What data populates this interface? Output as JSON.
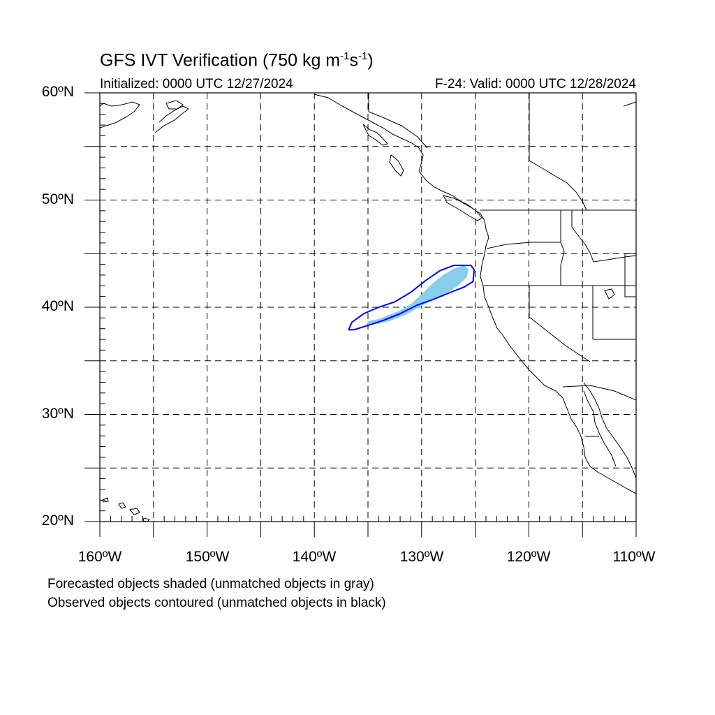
{
  "figure": {
    "title_prefix": "GFS IVT Verification (750 kg m",
    "title_exp1": "-1",
    "title_mid": "s",
    "title_exp2": "-1",
    "title_suffix": ")",
    "initialized": "Initialized: 0000 UTC 12/27/2024",
    "valid": "F-24: Valid: 0000 UTC 12/28/2024",
    "legend_note_1": "Forecasted objects shaded (unmatched objects in gray)",
    "legend_note_2": "Observed objects contoured (unmatched objects in black)"
  },
  "axes": {
    "lon_range": [
      -160,
      -110
    ],
    "lat_range": [
      20,
      60
    ],
    "lat_labels": [
      "60ºN",
      "50ºN",
      "40ºN",
      "30ºN",
      "20ºN"
    ],
    "lon_labels": [
      "160ºW",
      "150ºW",
      "140ºW",
      "130ºW",
      "120ºW",
      "110ºW"
    ],
    "grid_spacing_deg": 5,
    "grid": "dashed"
  },
  "colors": {
    "forecast_matched_fill": "#87ceeb",
    "observed_matched_contour": "#0000ff",
    "coastline": "#000000",
    "grid": "#000000"
  },
  "objects": {
    "forecast_object": {
      "matched": true,
      "polygon_lonlat": [
        [
          -135,
          38.7
        ],
        [
          -134,
          38.9
        ],
        [
          -133,
          39.3
        ],
        [
          -132,
          39.7
        ],
        [
          -131,
          40.3
        ],
        [
          -130,
          41.2
        ],
        [
          -129,
          42.2
        ],
        [
          -128,
          43.0
        ],
        [
          -127,
          43.6
        ],
        [
          -126,
          43.9
        ],
        [
          -125.6,
          43.5
        ],
        [
          -125.8,
          42.8
        ],
        [
          -126.6,
          42.0
        ],
        [
          -127.5,
          41.4
        ],
        [
          -128.8,
          40.8
        ],
        [
          -130.2,
          40.0
        ],
        [
          -131.5,
          39.3
        ],
        [
          -133,
          38.7
        ],
        [
          -134.3,
          38.4
        ],
        [
          -135,
          38.4
        ]
      ]
    },
    "observed_object": {
      "matched": true,
      "polygon_lonlat": [
        [
          -136.8,
          37.9
        ],
        [
          -136.5,
          38.6
        ],
        [
          -135.4,
          39.4
        ],
        [
          -134,
          40.0
        ],
        [
          -132.5,
          40.5
        ],
        [
          -131,
          41.4
        ],
        [
          -129.6,
          42.5
        ],
        [
          -128.3,
          43.4
        ],
        [
          -127,
          43.9
        ],
        [
          -125.4,
          43.9
        ],
        [
          -125.1,
          43.5
        ],
        [
          -125.2,
          42.4
        ],
        [
          -126,
          41.9
        ],
        [
          -127.5,
          41.3
        ],
        [
          -129,
          40.7
        ],
        [
          -130.4,
          40.2
        ],
        [
          -132,
          39.4
        ],
        [
          -133.5,
          38.8
        ],
        [
          -135,
          38.3
        ],
        [
          -136.3,
          37.9
        ]
      ]
    }
  }
}
